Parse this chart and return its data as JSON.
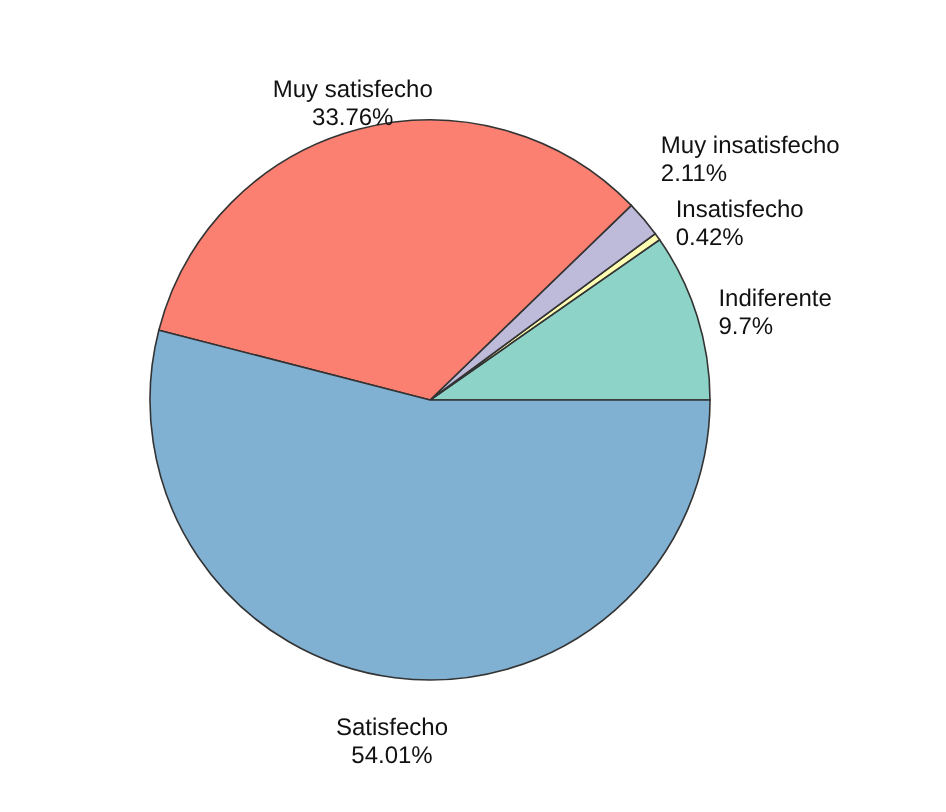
{
  "chart_data": {
    "type": "pie",
    "categories": [
      "Indiferente",
      "Insatisfecho",
      "Muy insatisfecho",
      "Muy satisfecho",
      "Satisfecho"
    ],
    "values": [
      9.7,
      0.42,
      2.11,
      33.76,
      54.01
    ],
    "value_labels": [
      "9.7%",
      "0.42%",
      "2.11%",
      "33.76%",
      "54.01%"
    ],
    "colors": [
      "#8dd3c7",
      "#ffffb3",
      "#bebada",
      "#fb8072",
      "#80b1d3"
    ]
  }
}
